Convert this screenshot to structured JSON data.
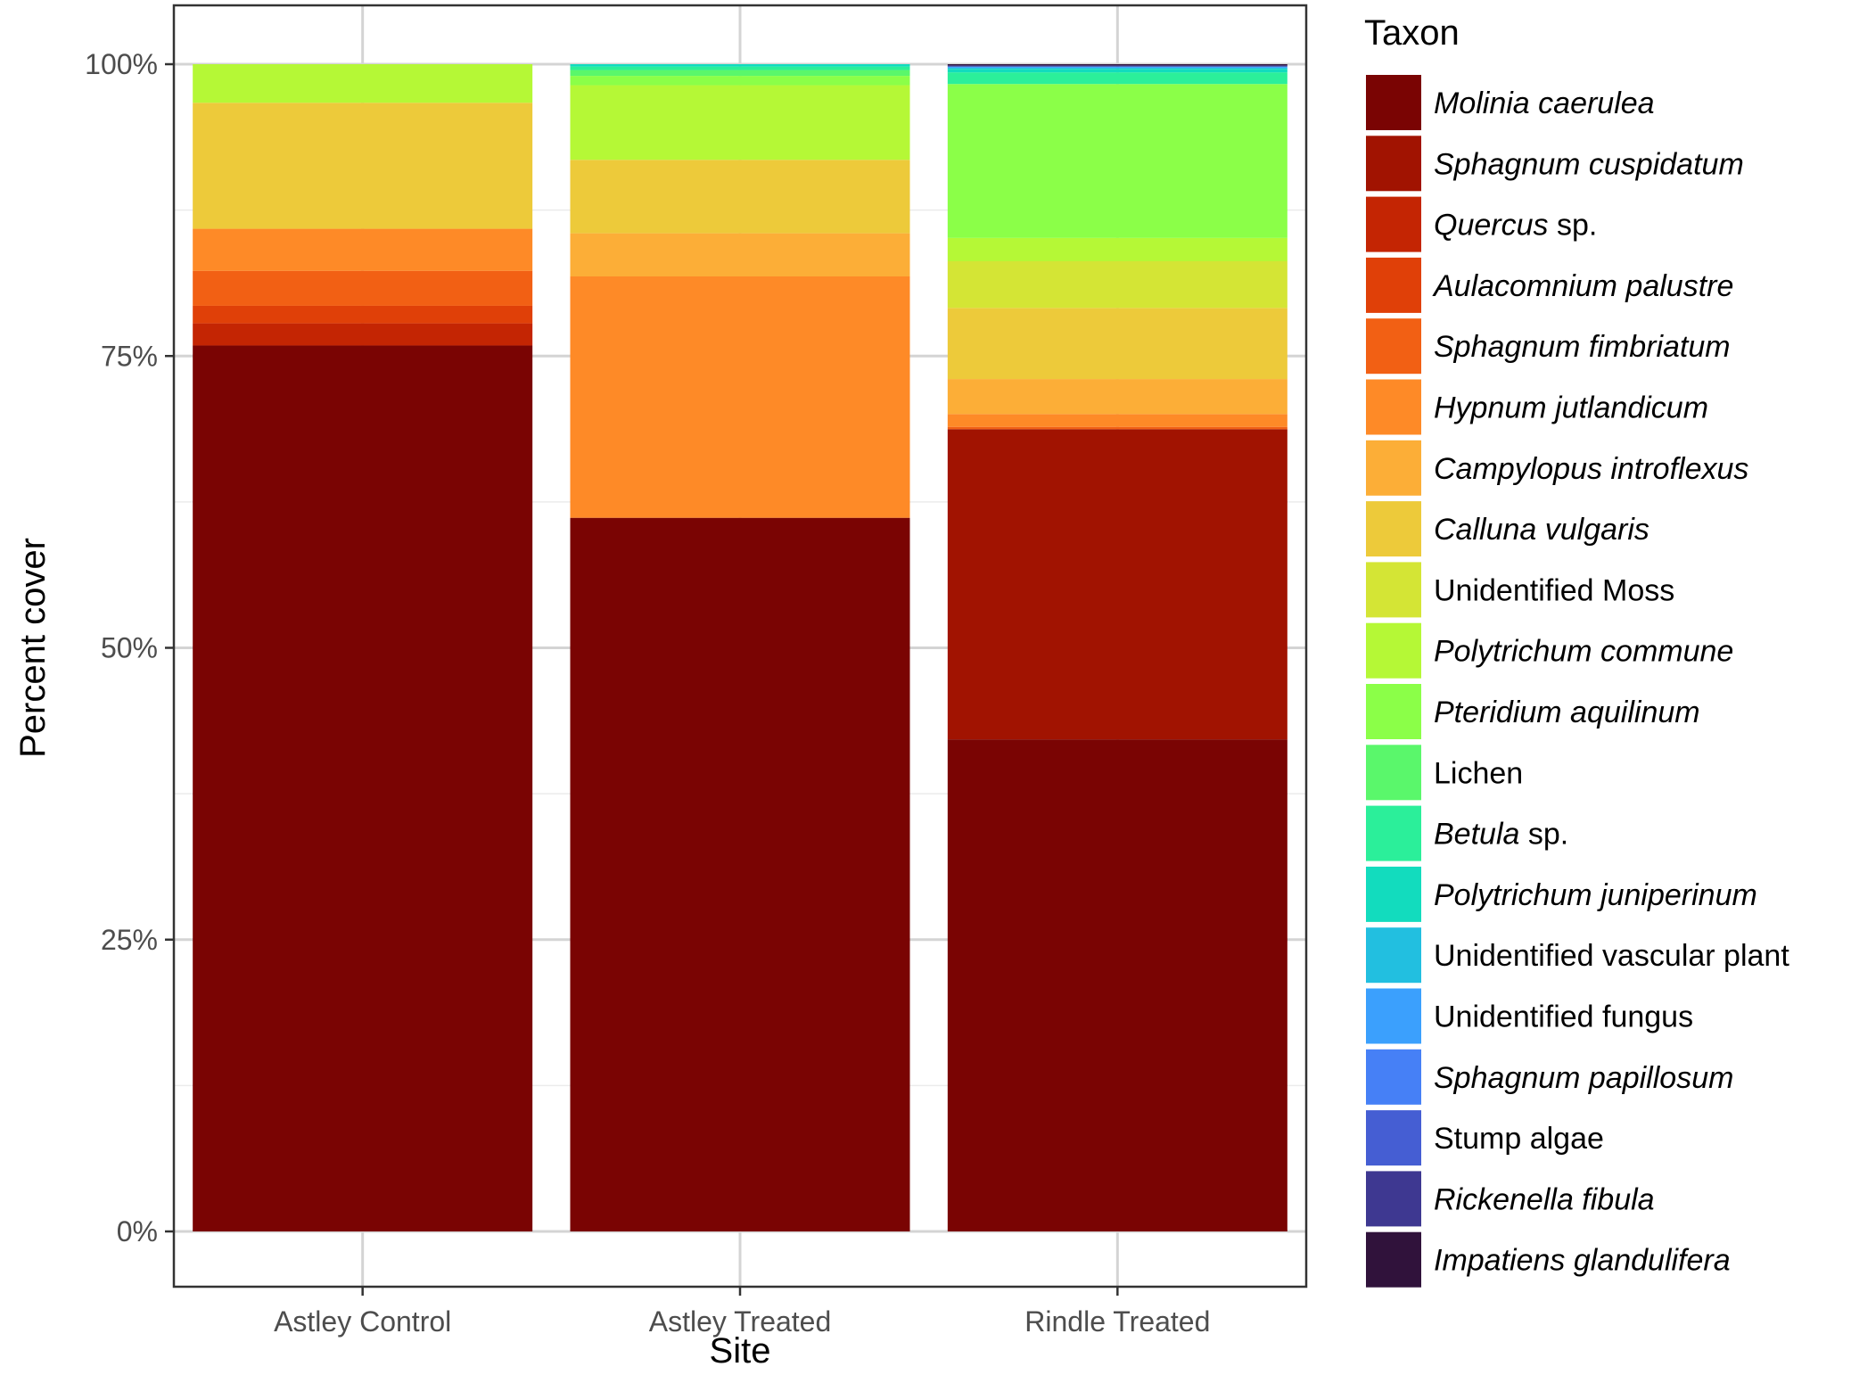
{
  "chart_data": {
    "type": "bar",
    "stacked": true,
    "normalized": true,
    "title": "",
    "xlabel": "Site",
    "ylabel": "Percent cover",
    "ylim": [
      0,
      100
    ],
    "yticks": [
      0,
      25,
      50,
      75,
      100
    ],
    "ytick_labels": [
      "0%",
      "25%",
      "50%",
      "75%",
      "100%"
    ],
    "grid": true,
    "legend_title": "Taxon",
    "legend_position": "right",
    "categories": [
      "Astley Control",
      "Astley Treated",
      "Rindle Treated"
    ],
    "series": [
      {
        "name": "Molinia caerulea",
        "italic_part": "Molinia caerulea",
        "suffix": "",
        "color": "#7a0403",
        "values": [
          75.9,
          61.2,
          42.2
        ]
      },
      {
        "name": "Sphagnum cuspidatum",
        "italic_part": "Sphagnum cuspidatum",
        "suffix": "",
        "color": "#a11301",
        "values": [
          0,
          0,
          26.6
        ]
      },
      {
        "name": "Quercus sp.",
        "italic_part": "Quercus",
        "suffix": " sp.",
        "color": "#c42503",
        "values": [
          1.9,
          0,
          0
        ]
      },
      {
        "name": "Aulacomnium palustre",
        "italic_part": "Aulacomnium palustre",
        "suffix": "",
        "color": "#e04008",
        "values": [
          1.5,
          0,
          0
        ]
      },
      {
        "name": "Sphagnum fimbriatum",
        "italic_part": "Sphagnum fimbriatum",
        "suffix": "",
        "color": "#f26014",
        "values": [
          3.0,
          0,
          0.2
        ]
      },
      {
        "name": "Hypnum jutlandicum",
        "italic_part": "Hypnum jutlandicum",
        "suffix": "",
        "color": "#fe8a27",
        "values": [
          3.6,
          20.7,
          1.1
        ]
      },
      {
        "name": "Campylopus introflexus",
        "italic_part": "Campylopus introflexus",
        "suffix": "",
        "color": "#fcae37",
        "values": [
          0,
          3.7,
          3.0
        ]
      },
      {
        "name": "Calluna vulgaris",
        "italic_part": "Calluna vulgaris",
        "suffix": "",
        "color": "#edca3a",
        "values": [
          10.8,
          6.3,
          6.1
        ]
      },
      {
        "name": "Unidentified Moss",
        "italic_part": "",
        "suffix": "Unidentified Moss",
        "color": "#d4e535",
        "values": [
          0,
          0,
          4.0
        ]
      },
      {
        "name": "Polytrichum commune",
        "italic_part": "Polytrichum commune",
        "suffix": "",
        "color": "#b5f836",
        "values": [
          3.3,
          6.4,
          2.0
        ]
      },
      {
        "name": "Pteridium aquilinum",
        "italic_part": "Pteridium aquilinum",
        "suffix": "",
        "color": "#8bff48",
        "values": [
          0,
          0.8,
          13.2
        ]
      },
      {
        "name": "Lichen",
        "italic_part": "",
        "suffix": "Lichen",
        "color": "#5af76b",
        "values": [
          0,
          0.5,
          0
        ]
      },
      {
        "name": "Betula sp.",
        "italic_part": "Betula",
        "suffix": " sp.",
        "color": "#2bef9a",
        "values": [
          0,
          0.3,
          1.0
        ]
      },
      {
        "name": "Polytrichum juniperinum",
        "italic_part": "Polytrichum juniperinum",
        "suffix": "",
        "color": "#12dcbe",
        "values": [
          0,
          0.2,
          0.3
        ]
      },
      {
        "name": "Unidentified vascular plant",
        "italic_part": "",
        "suffix": "Unidentified vascular plant",
        "color": "#22bfe0",
        "values": [
          0,
          0,
          0.1
        ]
      },
      {
        "name": "Unidentified fungus",
        "italic_part": "",
        "suffix": "Unidentified fungus",
        "color": "#3ba0fd",
        "values": [
          0,
          0,
          0.1
        ]
      },
      {
        "name": "Sphagnum papillosum",
        "italic_part": "Sphagnum papillosum",
        "suffix": "",
        "color": "#4680f6",
        "values": [
          0,
          0,
          0
        ]
      },
      {
        "name": "Stump algae",
        "italic_part": "",
        "suffix": "Stump algae",
        "color": "#455ed3",
        "values": [
          0,
          0,
          0
        ]
      },
      {
        "name": "Rickenella fibula",
        "italic_part": "Rickenella fibula",
        "suffix": "",
        "color": "#3e3891",
        "values": [
          0,
          0,
          0.1
        ]
      },
      {
        "name": "Impatiens glandulifera",
        "italic_part": "Impatiens glandulifera",
        "suffix": "",
        "color": "#30123b",
        "values": [
          0,
          0,
          0.1
        ]
      }
    ]
  }
}
